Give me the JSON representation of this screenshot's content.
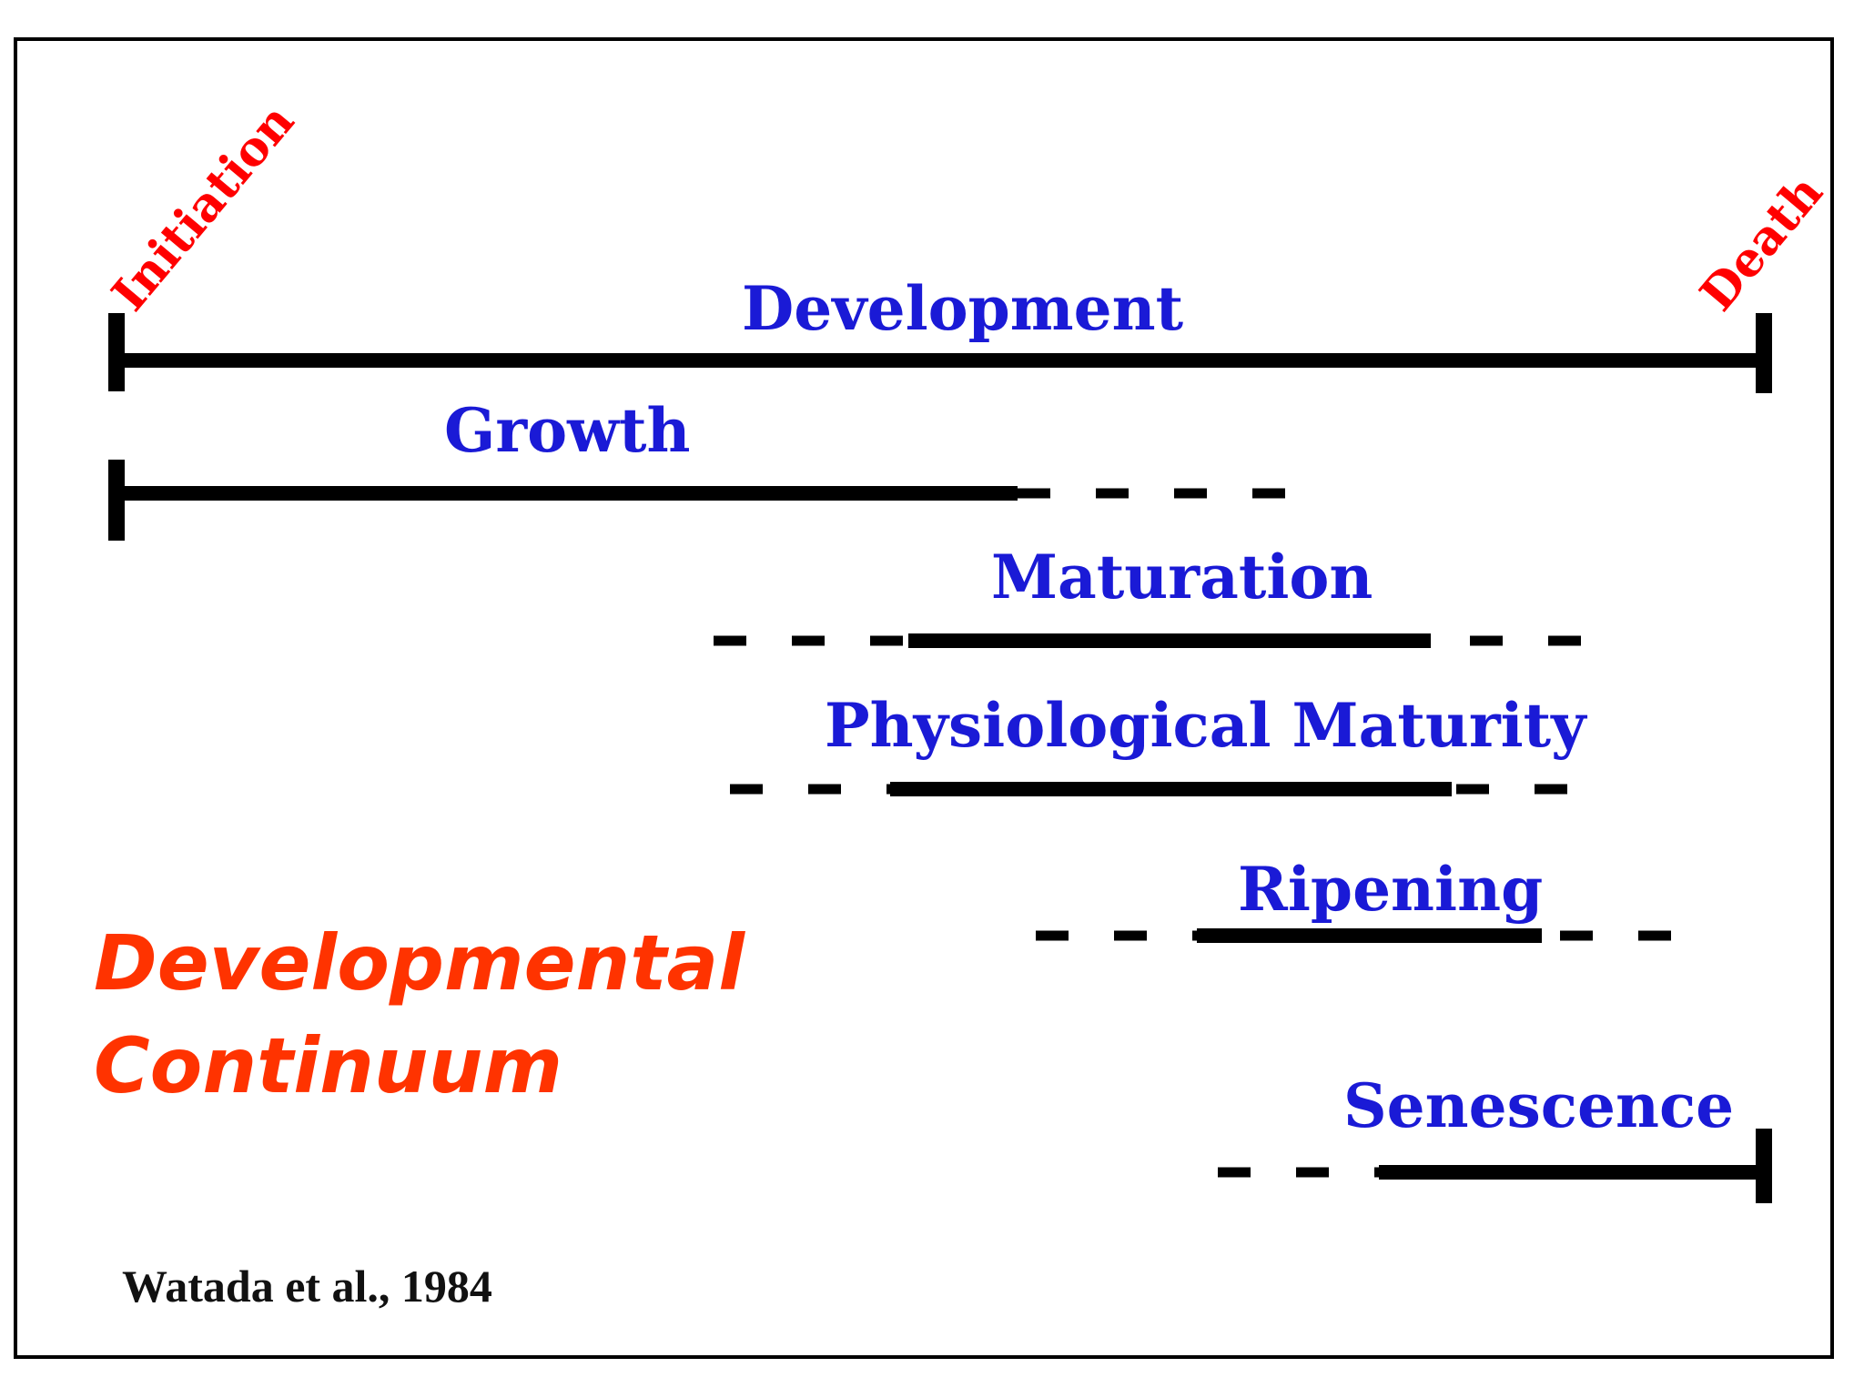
{
  "diagram": {
    "title_line1": "Developmental",
    "title_line2": "Continuum",
    "start_label": "Initiation",
    "end_label": "Death",
    "citation": "Watada et al., 1984",
    "phases": [
      {
        "key": "development",
        "label": "Development"
      },
      {
        "key": "growth",
        "label": "Growth"
      },
      {
        "key": "maturation",
        "label": "Maturation"
      },
      {
        "key": "physiological_maturity",
        "label": "Physiological Maturity"
      },
      {
        "key": "ripening",
        "label": "Ripening"
      },
      {
        "key": "senescence",
        "label": "Senescence"
      }
    ],
    "colors": {
      "phase_label": "#1a1ad6",
      "endpoint_label": "#ff0000",
      "title": "#ff3300",
      "line": "#000000"
    }
  }
}
